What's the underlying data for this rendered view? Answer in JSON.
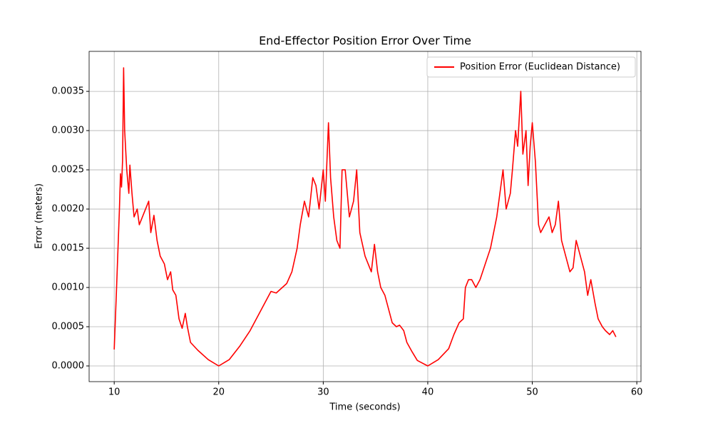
{
  "chart_data": {
    "type": "line",
    "title": "End-Effector Position Error Over Time",
    "xlabel": "Time (seconds)",
    "ylabel": "Error (meters)",
    "x": [
      10.0,
      10.2,
      10.5,
      10.6,
      10.7,
      10.8,
      10.9,
      11.0,
      11.2,
      11.4,
      11.5,
      11.7,
      11.9,
      12.2,
      12.4,
      12.7,
      13.0,
      13.3,
      13.5,
      13.8,
      14.1,
      14.4,
      14.8,
      15.1,
      15.4,
      15.6,
      15.9,
      16.2,
      16.5,
      16.8,
      17.0,
      17.3,
      18.0,
      19.0,
      20.0,
      21.0,
      22.0,
      23.0,
      24.0,
      25.0,
      25.5,
      26.5,
      27.0,
      27.5,
      27.8,
      28.2,
      28.6,
      29.0,
      29.3,
      29.6,
      30.0,
      30.2,
      30.5,
      30.7,
      31.0,
      31.3,
      31.6,
      31.8,
      32.1,
      32.5,
      32.9,
      33.2,
      33.5,
      34.0,
      34.3,
      34.6,
      34.9,
      35.2,
      35.5,
      35.9,
      36.3,
      36.6,
      37.0,
      37.3,
      37.7,
      38.0,
      38.5,
      39.0,
      40.0,
      41.0,
      42.0,
      42.5,
      43.0,
      43.4,
      43.6,
      43.9,
      44.2,
      44.6,
      45.0,
      45.5,
      46.0,
      46.3,
      46.6,
      46.9,
      47.2,
      47.5,
      47.9,
      48.1,
      48.4,
      48.6,
      48.9,
      49.1,
      49.4,
      49.6,
      49.8,
      50.0,
      50.3,
      50.6,
      50.8,
      51.2,
      51.6,
      51.9,
      52.2,
      52.5,
      52.8,
      53.2,
      53.6,
      53.9,
      54.2,
      54.6,
      55.0,
      55.3,
      55.6,
      56.0,
      56.3,
      56.7,
      57.0,
      57.4,
      57.7,
      58.0
    ],
    "series": [
      {
        "name": "Position Error (Euclidean Distance)",
        "color": "#ff0000",
        "values": [
          0.00021,
          0.0009,
          0.002,
          0.00245,
          0.00228,
          0.00262,
          0.0038,
          0.003,
          0.0025,
          0.0022,
          0.00256,
          0.0022,
          0.0019,
          0.002,
          0.0018,
          0.0019,
          0.002,
          0.0021,
          0.0017,
          0.00192,
          0.0016,
          0.0014,
          0.0013,
          0.0011,
          0.0012,
          0.00097,
          0.0009,
          0.0006,
          0.00048,
          0.00067,
          0.0005,
          0.0003,
          0.0002,
          8e-05,
          0.0,
          8e-05,
          0.00025,
          0.00045,
          0.0007,
          0.00095,
          0.00093,
          0.00105,
          0.0012,
          0.0015,
          0.0018,
          0.0021,
          0.0019,
          0.0024,
          0.0023,
          0.002,
          0.0025,
          0.0021,
          0.0031,
          0.0024,
          0.0019,
          0.0016,
          0.0015,
          0.0025,
          0.0025,
          0.0019,
          0.0021,
          0.0025,
          0.0017,
          0.0014,
          0.0013,
          0.0012,
          0.00155,
          0.0012,
          0.001,
          0.0009,
          0.0007,
          0.00055,
          0.0005,
          0.00052,
          0.00045,
          0.0003,
          0.00018,
          7e-05,
          0.0,
          8e-05,
          0.00022,
          0.0004,
          0.00055,
          0.0006,
          0.001,
          0.0011,
          0.0011,
          0.001,
          0.0011,
          0.0013,
          0.0015,
          0.0017,
          0.0019,
          0.0022,
          0.0025,
          0.002,
          0.0022,
          0.0025,
          0.003,
          0.0028,
          0.0035,
          0.0027,
          0.003,
          0.0023,
          0.0028,
          0.0031,
          0.0026,
          0.0018,
          0.0017,
          0.0018,
          0.0019,
          0.0017,
          0.0018,
          0.0021,
          0.0016,
          0.0014,
          0.0012,
          0.00125,
          0.0016,
          0.0014,
          0.0012,
          0.0009,
          0.0011,
          0.0008,
          0.0006,
          0.0005,
          0.00045,
          0.0004,
          0.00045,
          0.00037
        ]
      }
    ],
    "xlim": [
      7.6,
      60.4
    ],
    "ylim": [
      -0.0002,
      0.00401
    ],
    "xticks": [
      10,
      20,
      30,
      40,
      50,
      60
    ],
    "yticks": [
      {
        "value": 0,
        "label": "0.0000"
      },
      {
        "value": 0.0005,
        "label": "0.0005"
      },
      {
        "value": 0.001,
        "label": "0.0010"
      },
      {
        "value": 0.0015,
        "label": "0.0015"
      },
      {
        "value": 0.002,
        "label": "0.0020"
      },
      {
        "value": 0.0025,
        "label": "0.0025"
      },
      {
        "value": 0.003,
        "label": "0.0030"
      },
      {
        "value": 0.0035,
        "label": "0.0035"
      }
    ],
    "grid": true,
    "legend": "upper right"
  }
}
